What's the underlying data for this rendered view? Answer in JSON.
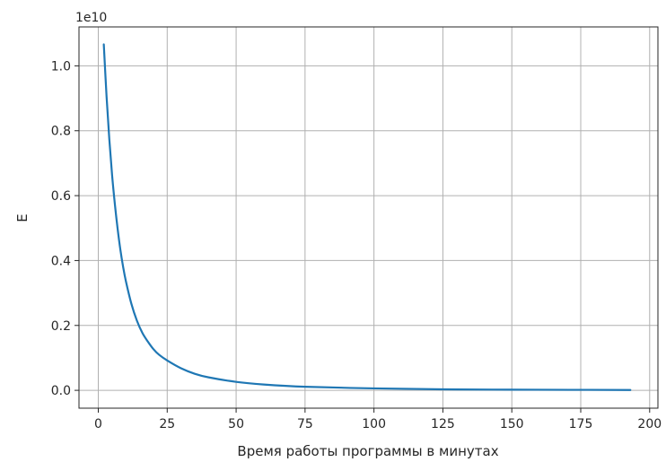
{
  "chart_data": {
    "type": "line",
    "title": "",
    "xlabel": "Время работы программы в минутах",
    "ylabel": "E",
    "y_offset_label": "1e10",
    "xlim": [
      -7,
      203
    ],
    "ylim": [
      -0.055,
      1.12
    ],
    "x_ticks": [
      0,
      25,
      50,
      75,
      100,
      125,
      150,
      175,
      200
    ],
    "x_tick_labels": [
      "0",
      "25",
      "50",
      "75",
      "100",
      "125",
      "150",
      "175",
      "200"
    ],
    "y_ticks": [
      0.0,
      0.2,
      0.4,
      0.6,
      0.8,
      1.0
    ],
    "y_tick_labels": [
      "0.0",
      "0.2",
      "0.4",
      "0.6",
      "0.8",
      "1.0"
    ],
    "grid": true,
    "line_color": "#1f77b4",
    "series": [
      {
        "x": [
          2,
          3,
          4,
          5,
          6,
          7,
          8,
          9,
          10,
          12,
          14,
          16,
          18,
          20,
          22,
          25,
          30,
          35,
          40,
          50,
          60,
          75,
          100,
          125,
          150,
          175,
          193
        ],
        "values": [
          1.066,
          0.906,
          0.774,
          0.664,
          0.575,
          0.499,
          0.434,
          0.381,
          0.337,
          0.267,
          0.215,
          0.177,
          0.15,
          0.127,
          0.11,
          0.092,
          0.068,
          0.051,
          0.04,
          0.026,
          0.018,
          0.011,
          0.006,
          0.003,
          0.002,
          0.0015,
          0.001
        ]
      }
    ]
  }
}
